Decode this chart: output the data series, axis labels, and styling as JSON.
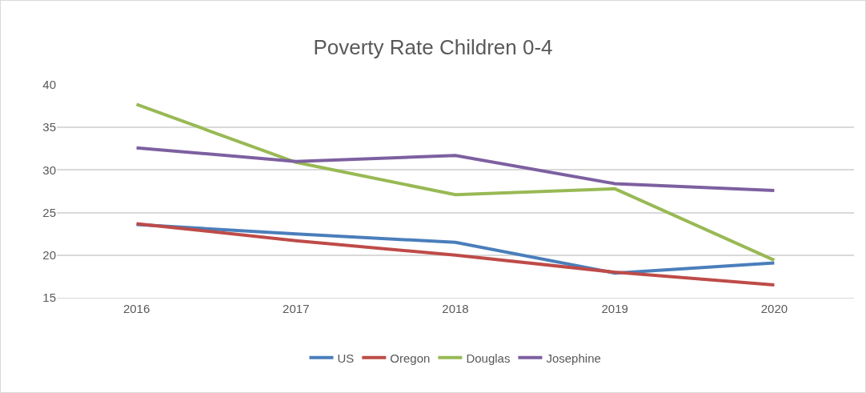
{
  "chart_data": {
    "type": "line",
    "title": "Poverty Rate Children 0-4",
    "categories": [
      "2016",
      "2017",
      "2018",
      "2019",
      "2020"
    ],
    "series": [
      {
        "name": "US",
        "color": "#4a7ebb",
        "values": [
          23.6,
          22.5,
          21.5,
          17.9,
          19.1
        ]
      },
      {
        "name": "Oregon",
        "color": "#be4b48",
        "values": [
          23.7,
          21.7,
          20.0,
          18.0,
          16.5
        ]
      },
      {
        "name": "Douglas",
        "color": "#98b954",
        "values": [
          37.7,
          30.9,
          27.1,
          27.8,
          19.4
        ]
      },
      {
        "name": "Josephine",
        "color": "#7d60a0",
        "values": [
          32.6,
          31.0,
          31.7,
          28.4,
          27.6
        ]
      }
    ],
    "ylim": [
      15,
      40
    ],
    "yticks": [
      15,
      20,
      25,
      30,
      35,
      40
    ],
    "grid": "y",
    "legend": "bottom",
    "marker": "none",
    "line_style": "solid"
  }
}
